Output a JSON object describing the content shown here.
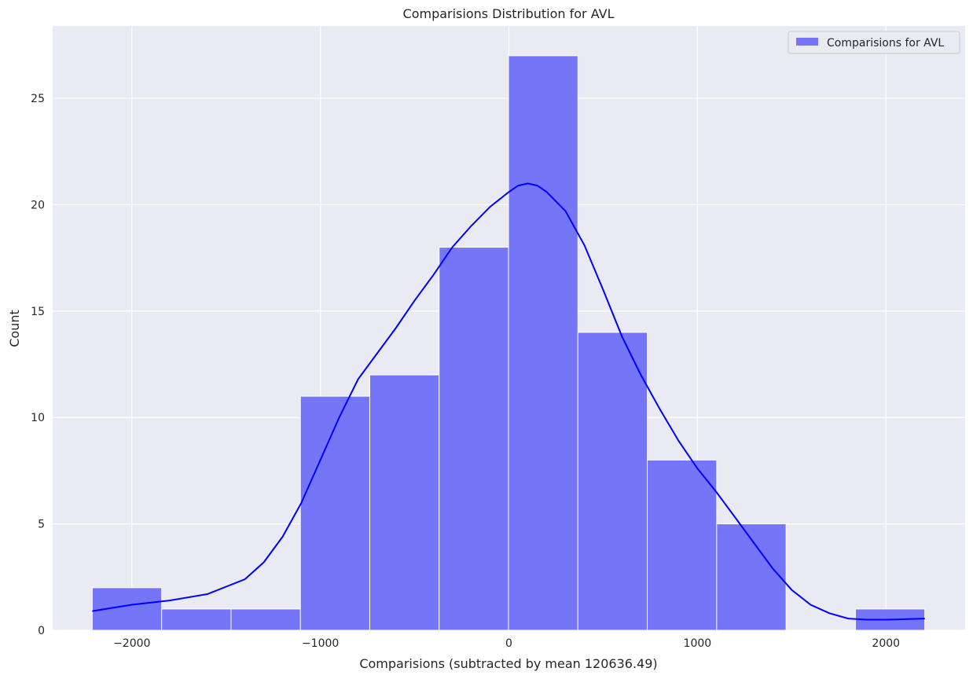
{
  "chart_data": {
    "type": "bar",
    "title": "Comparisions Distribution for AVL",
    "xlabel": "Comparisions (subtracted by mean 120636.49)",
    "ylabel": "Count",
    "xlim": [
      -2420,
      2420
    ],
    "ylim": [
      0,
      28.4
    ],
    "xticks": [
      -2000,
      -1000,
      0,
      1000,
      2000
    ],
    "xtick_labels": [
      "−2000",
      "−1000",
      "0",
      "1000",
      "2000"
    ],
    "yticks": [
      0,
      5,
      10,
      15,
      20,
      25
    ],
    "ytick_labels": [
      "0",
      "5",
      "10",
      "15",
      "20",
      "25"
    ],
    "grid": true,
    "legend_position": "top-right",
    "bins": [
      {
        "x0": -2210,
        "x1": -1842,
        "count": 2
      },
      {
        "x0": -1842,
        "x1": -1474,
        "count": 1
      },
      {
        "x0": -1474,
        "x1": -1106,
        "count": 1
      },
      {
        "x0": -1106,
        "x1": -738,
        "count": 11
      },
      {
        "x0": -738,
        "x1": -370,
        "count": 12
      },
      {
        "x0": -370,
        "x1": -2,
        "count": 18
      },
      {
        "x0": -2,
        "x1": 366,
        "count": 27
      },
      {
        "x0": 366,
        "x1": 734,
        "count": 14
      },
      {
        "x0": 734,
        "x1": 1102,
        "count": 8
      },
      {
        "x0": 1102,
        "x1": 1470,
        "count": 5
      },
      {
        "x0": 1470,
        "x1": 1838,
        "count": 0
      },
      {
        "x0": 1838,
        "x1": 2206,
        "count": 1
      }
    ],
    "kde": {
      "x": [
        -2210,
        -2000,
        -1800,
        -1600,
        -1400,
        -1300,
        -1200,
        -1100,
        -1000,
        -900,
        -800,
        -700,
        -600,
        -500,
        -400,
        -300,
        -200,
        -100,
        0,
        50,
        100,
        150,
        200,
        300,
        400,
        500,
        600,
        700,
        800,
        900,
        1000,
        1100,
        1200,
        1300,
        1400,
        1500,
        1600,
        1700,
        1800,
        1900,
        2000,
        2100,
        2206
      ],
      "y": [
        0.9,
        1.2,
        1.4,
        1.7,
        2.4,
        3.2,
        4.4,
        6.0,
        8.0,
        10.0,
        11.8,
        13.0,
        14.2,
        15.5,
        16.7,
        18.0,
        19.0,
        19.9,
        20.6,
        20.9,
        21.0,
        20.9,
        20.6,
        19.7,
        18.1,
        16.0,
        13.8,
        12.0,
        10.4,
        8.9,
        7.6,
        6.5,
        5.3,
        4.1,
        2.9,
        1.9,
        1.2,
        0.8,
        0.55,
        0.5,
        0.5,
        0.52,
        0.55
      ]
    },
    "legend_label": "Comparisions for AVL",
    "colors": {
      "bar_fill": "#7575f7",
      "bar_edge": "#ffffff",
      "kde_line": "#0000ff",
      "plot_bg": "#eaeaf2",
      "grid": "#ffffff",
      "text": "#262626"
    }
  }
}
